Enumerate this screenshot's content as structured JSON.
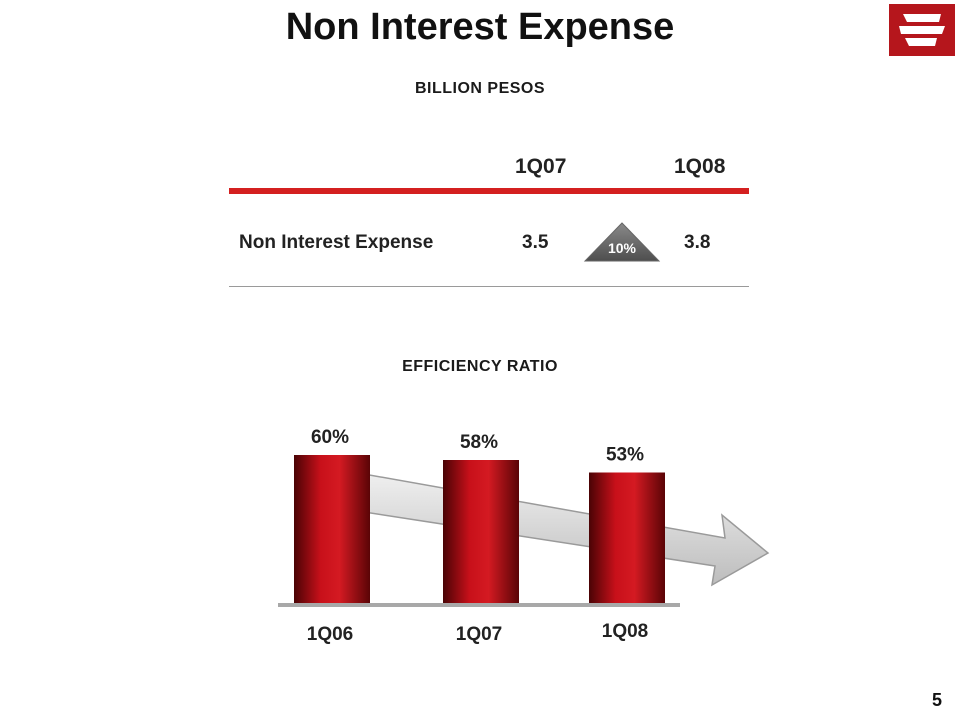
{
  "header": {
    "title": "Non Interest Expense"
  },
  "table": {
    "units": "BILLION PESOS",
    "columns": [
      "1Q07",
      "1Q08"
    ],
    "rows": [
      {
        "label": "Non Interest Expense",
        "values": [
          "3.5",
          "3.8"
        ],
        "change": "10%"
      }
    ]
  },
  "efficiency": {
    "label": "EFFICIENCY RATIO"
  },
  "colors": {
    "bar": "#c8101a",
    "bar_dark": "#5a0406",
    "rule_red": "#d42020",
    "arrow": "#d9d9d9",
    "logo": "#b5161c"
  },
  "chart_data": {
    "type": "bar",
    "categories": [
      "1Q06",
      "1Q07",
      "1Q08"
    ],
    "values": [
      60,
      58,
      53
    ],
    "data_labels": [
      "60%",
      "58%",
      "53%"
    ],
    "title": "EFFICIENCY RATIO",
    "trend_arrow": "down"
  },
  "footer": {
    "page_number": "5"
  }
}
